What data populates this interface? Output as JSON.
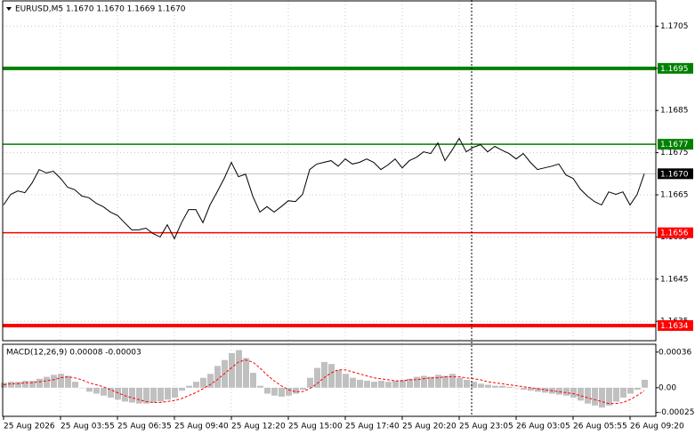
{
  "chart_data": [
    {
      "type": "line",
      "title": "EURUSD,M5  1.1670 1.1670 1.1669 1.1670",
      "color": "#000000",
      "grid": true,
      "ylim": [
        1.16304,
        1.1711
      ],
      "yticks": [
        1.1705,
        1.1695,
        1.1685,
        1.1675,
        1.1665,
        1.1655,
        1.1645,
        1.1635
      ],
      "categories": [
        "25 Aug 2026",
        null,
        null,
        null,
        null,
        null,
        null,
        null,
        "25 Aug 03:55",
        null,
        null,
        null,
        null,
        null,
        null,
        null,
        "25 Aug 06:35",
        null,
        null,
        null,
        null,
        null,
        null,
        null,
        "25 Aug 09:40",
        null,
        null,
        null,
        null,
        null,
        null,
        null,
        "25 Aug 12:20",
        null,
        null,
        null,
        null,
        null,
        null,
        null,
        "25 Aug 15:00",
        null,
        null,
        null,
        null,
        null,
        null,
        null,
        "25 Aug 17:40",
        null,
        null,
        null,
        null,
        null,
        null,
        null,
        "25 Aug 20:20",
        null,
        null,
        null,
        null,
        null,
        null,
        null,
        "25 Aug 23:05",
        null,
        null,
        null,
        null,
        null,
        null,
        null,
        "26 Aug 03:05",
        null,
        null,
        null,
        null,
        null,
        null,
        null,
        "26 Aug 05:55",
        null,
        null,
        null,
        null,
        null,
        null,
        null,
        "26 Aug 09:20",
        null,
        null
      ],
      "values": [
        1.16626,
        1.16651,
        1.16659,
        1.16655,
        1.16678,
        1.1671,
        1.16702,
        1.16706,
        1.16689,
        1.16668,
        1.16662,
        1.16647,
        1.16643,
        1.1663,
        1.16622,
        1.16609,
        1.16601,
        1.16584,
        1.16567,
        1.16567,
        1.16571,
        1.16558,
        1.1655,
        1.16579,
        1.16546,
        1.16584,
        1.16615,
        1.16615,
        1.16584,
        1.16626,
        1.16657,
        1.16689,
        1.16727,
        1.16693,
        1.16699,
        1.16647,
        1.16609,
        1.16622,
        1.16609,
        1.16622,
        1.16636,
        1.16634,
        1.16651,
        1.1671,
        1.16723,
        1.16727,
        1.16731,
        1.16718,
        1.16735,
        1.16723,
        1.16727,
        1.16735,
        1.16727,
        1.1671,
        1.16721,
        1.16735,
        1.16714,
        1.16731,
        1.16739,
        1.16752,
        1.16748,
        1.16773,
        1.16731,
        1.16756,
        1.16784,
        1.16752,
        1.16763,
        1.16769,
        1.16752,
        1.16765,
        1.16756,
        1.16748,
        1.16735,
        1.16748,
        1.16727,
        1.1671,
        1.16714,
        1.16718,
        1.16723,
        1.16697,
        1.16689,
        1.16664,
        1.16647,
        1.16634,
        1.16626,
        1.16657,
        1.16651,
        1.16657,
        1.16626,
        1.16651,
        1.167
      ],
      "levels": [
        {
          "value": 1.1695,
          "color": "#008000"
        },
        {
          "value": 1.1677,
          "color": "#008000"
        },
        {
          "value": 1.1656,
          "color": "#ff0000"
        },
        {
          "value": 1.1634,
          "color": "#ff0000"
        }
      ],
      "last_price": {
        "value": 1.167,
        "label": "1.1670"
      }
    },
    {
      "type": "macd",
      "title": "MACD(12,26,9) 0.00008 -0.00003",
      "ylim": [
        -0.00028,
        0.00043
      ],
      "yticks": [
        0.00036,
        {
          "value": 0,
          "label": "0.00"
        },
        -0.00025
      ],
      "histogram": {
        "color": "#c0c0c0",
        "values": [
          5e-05,
          6e-05,
          6e-05,
          7e-05,
          7e-05,
          9e-05,
          0.00011,
          0.00013,
          0.00014,
          0.00012,
          6e-05,
          0,
          -4e-05,
          -6e-05,
          -8e-05,
          -0.0001,
          -0.00012,
          -0.00014,
          -0.00015,
          -0.00016,
          -0.00016,
          -0.00015,
          -0.00014,
          -0.00012,
          -0.0001,
          -3e-05,
          2e-05,
          6e-05,
          0.0001,
          0.00014,
          0.00022,
          0.00028,
          0.00035,
          0.00038,
          0.0003,
          0.00015,
          2e-05,
          -6e-05,
          -8e-05,
          -9e-05,
          -8e-05,
          -6e-05,
          -2e-05,
          0.0001,
          0.0002,
          0.00026,
          0.00024,
          0.00018,
          0.00014,
          0.0001,
          8e-05,
          7e-05,
          6e-05,
          7e-05,
          6e-05,
          7e-05,
          8e-05,
          9e-05,
          0.00011,
          0.00012,
          0.00011,
          0.00013,
          0.00012,
          0.00014,
          0.0001,
          8e-05,
          6e-05,
          4e-05,
          3e-05,
          2e-05,
          2e-05,
          1e-05,
          0,
          -2e-05,
          -3e-05,
          -4e-05,
          -5e-05,
          -6e-05,
          -7e-05,
          -8e-05,
          -0.0001,
          -0.00013,
          -0.00016,
          -0.00018,
          -0.0002,
          -0.00018,
          -0.00014,
          -0.0001,
          -6e-05,
          -2e-05,
          8e-05
        ]
      },
      "signal": {
        "color": "#ff0000",
        "values": [
          3e-05,
          4e-05,
          4e-05,
          5e-05,
          5e-05,
          6e-05,
          7e-05,
          8e-05,
          0.0001,
          0.00011,
          0.0001,
          8e-05,
          5e-05,
          3e-05,
          1e-05,
          -2e-05,
          -5e-05,
          -8e-05,
          -0.0001,
          -0.00012,
          -0.00014,
          -0.00015,
          -0.00015,
          -0.00014,
          -0.00013,
          -0.00011,
          -8e-05,
          -5e-05,
          -1e-05,
          3e-05,
          8e-05,
          0.00014,
          0.0002,
          0.00026,
          0.00028,
          0.00026,
          0.0002,
          0.00013,
          7e-05,
          2e-05,
          -2e-05,
          -4e-05,
          -4e-05,
          -1e-05,
          4e-05,
          0.0001,
          0.00015,
          0.00018,
          0.00018,
          0.00016,
          0.00014,
          0.00012,
          0.0001,
          9e-05,
          8e-05,
          7e-05,
          7e-05,
          8e-05,
          8e-05,
          9e-05,
          0.0001,
          0.0001,
          0.00011,
          0.00011,
          0.00011,
          0.0001,
          9e-05,
          8e-05,
          6e-05,
          5e-05,
          4e-05,
          3e-05,
          2e-05,
          1e-05,
          0,
          -1e-05,
          -2e-05,
          -3e-05,
          -4e-05,
          -5e-05,
          -6e-05,
          -8e-05,
          -0.0001,
          -0.00012,
          -0.00014,
          -0.00016,
          -0.00016,
          -0.00015,
          -0.00012,
          -8e-05,
          -3e-05
        ]
      }
    }
  ]
}
